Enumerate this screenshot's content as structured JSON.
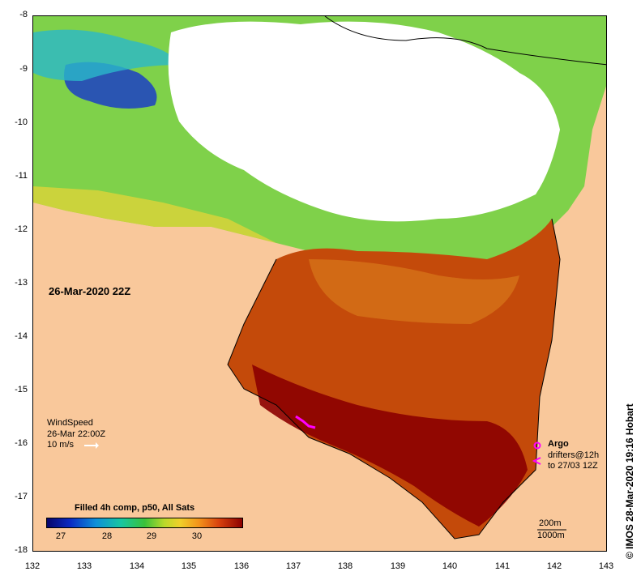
{
  "map": {
    "date_label": "26-Mar-2020 22Z",
    "y_axis_ticks": [
      "-8",
      "-9",
      "-10",
      "-11",
      "-12",
      "-13",
      "-14",
      "-15",
      "-16",
      "-17",
      "-18"
    ],
    "x_axis_ticks": [
      "132",
      "133",
      "134",
      "135",
      "136",
      "137",
      "138",
      "139",
      "140",
      "141",
      "142",
      "143"
    ],
    "land_color": "#f9c89b",
    "cloud_color": "#ffffff"
  },
  "wind": {
    "title": "WindSpeed",
    "time": "26-Mar 22:00Z",
    "speed": "10 m/s"
  },
  "colorbar": {
    "title": "Filled 4h comp, p50, All Sats",
    "labels": [
      "27",
      "28",
      "29",
      "30"
    ]
  },
  "legend": {
    "argo": "Argo",
    "drifters_1": "drifters@12h",
    "drifters_2": "to 27/03 12Z",
    "argo_color": "#ff00ff"
  },
  "depth": {
    "contour_200": "200m",
    "contour_1000": "1000m"
  },
  "credit": "© IMOS 28-Mar-2020 19:16 Hobart"
}
